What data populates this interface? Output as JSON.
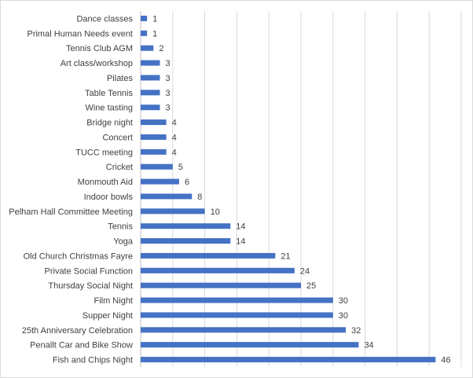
{
  "chart_data": {
    "type": "bar",
    "orientation": "horizontal",
    "title": "",
    "xlabel": "",
    "ylabel": "",
    "xlim": [
      0,
      50
    ],
    "grid": true,
    "legend": "none",
    "bar_color": "#4472c4",
    "categories": [
      "Dance classes",
      "Primal Human Needs event",
      "Tennis Club AGM",
      "Art class/workshop",
      "Pilates",
      "Table Tennis",
      "Wine tasting",
      "Bridge night",
      "Concert",
      "TUCC meeting",
      "Cricket",
      "Monmouth Aid",
      "Indoor bowls",
      "Pelham Hall Committee Meeting",
      "Tennis",
      "Yoga",
      "Old Church Christmas Fayre",
      "Private Social Function",
      "Thursday Social Night",
      "Film Night",
      "Supper Night",
      "25th Anniversary Celebration",
      "Penallt Car and Bike Show",
      "Fish and Chips Night"
    ],
    "values": [
      1,
      1,
      2,
      3,
      3,
      3,
      3,
      4,
      4,
      4,
      5,
      6,
      8,
      10,
      14,
      14,
      21,
      24,
      25,
      30,
      30,
      32,
      34,
      46
    ]
  }
}
